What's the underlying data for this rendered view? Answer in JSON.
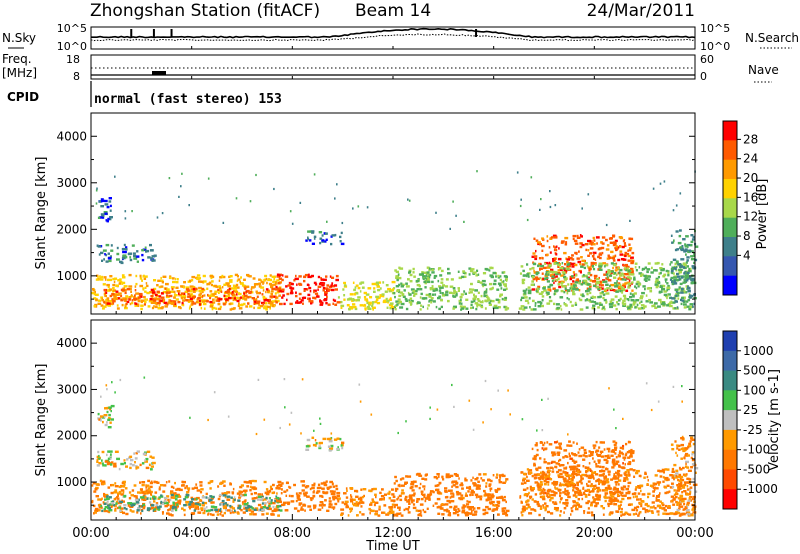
{
  "header": {
    "station": "Zhongshan Station (fitACF)",
    "beam": "Beam 14",
    "date": "24/Mar/2011"
  },
  "top_panels": {
    "nsky_label": "N.Sky",
    "nsky_ticks": [
      "10^5",
      "10^0"
    ],
    "nsearch_label": "N.Search",
    "nsearch_ticks": [
      "10^5",
      "10^0"
    ],
    "freq_label": "Freq.",
    "freq_unit": "[MHz]",
    "freq_ticks": [
      "18",
      "8"
    ],
    "nave_label": "Nave",
    "nave_ticks": [
      "60",
      "0"
    ],
    "cpid_label": "CPID",
    "cpid_value": "normal (fast stereo) 153"
  },
  "time_axis": {
    "ticks": [
      "00:00",
      "04:00",
      "08:00",
      "12:00",
      "16:00",
      "20:00",
      "00:00"
    ],
    "label": "Time UT"
  },
  "power_colorbar": {
    "label": "Power [dB]",
    "ticks": [
      "28",
      "24",
      "20",
      "16",
      "12",
      "8",
      "4"
    ],
    "colors": [
      "#ff0000",
      "#ff5a00",
      "#ff9a00",
      "#ffd200",
      "#a8d84a",
      "#4fae5a",
      "#3e7f8a",
      "#3557b0",
      "#0000ff"
    ]
  },
  "velocity_colorbar": {
    "label": "Velocity [m s-1]",
    "ticks": [
      "1000",
      "500",
      "100",
      "25",
      "-25",
      "-100",
      "-500",
      "-1000"
    ],
    "colors": [
      "#1f3fb0",
      "#3d6aa8",
      "#3a8a82",
      "#44c14a",
      "#bfbfbf",
      "#ff9a00",
      "#ff7800",
      "#ff4a00",
      "#ff0000"
    ]
  },
  "chart_data": [
    {
      "type": "heatmap",
      "title": "Power",
      "ylabel": "Slant Range [km]",
      "xlabel": "Time UT",
      "x_range_hours": [
        0,
        24
      ],
      "y_range_km": [
        180,
        4500
      ],
      "y_ticks": [
        1000,
        2000,
        3000,
        4000
      ],
      "regions": [
        {
          "t": [
            0.0,
            7.5
          ],
          "r": [
            300,
            1050
          ],
          "power_db": 20
        },
        {
          "t": [
            0.3,
            7.5
          ],
          "r": [
            400,
            750
          ],
          "power_db": 26
        },
        {
          "t": [
            7.3,
            9.8
          ],
          "r": [
            400,
            1050
          ],
          "power_db": 28
        },
        {
          "t": [
            9.8,
            12.0
          ],
          "r": [
            300,
            900
          ],
          "power_db": 16
        },
        {
          "t": [
            0.2,
            2.5
          ],
          "r": [
            1300,
            1700
          ],
          "power_db": 6
        },
        {
          "t": [
            0.2,
            0.8
          ],
          "r": [
            2200,
            2700
          ],
          "power_db": 5
        },
        {
          "t": [
            8.5,
            10.0
          ],
          "r": [
            1700,
            2000
          ],
          "power_db": 5
        },
        {
          "t": [
            12.0,
            16.5
          ],
          "r": [
            300,
            1200
          ],
          "power_db": 12
        },
        {
          "t": [
            17.5,
            21.5
          ],
          "r": [
            700,
            1900
          ],
          "power_db": 26
        },
        {
          "t": [
            17.0,
            23.8
          ],
          "r": [
            300,
            1300
          ],
          "power_db": 12
        },
        {
          "t": [
            23.0,
            24.0
          ],
          "r": [
            300,
            2000
          ],
          "power_db": 8
        }
      ]
    },
    {
      "type": "heatmap",
      "title": "Velocity",
      "ylabel": "Slant Range [km]",
      "xlabel": "Time UT",
      "x_range_hours": [
        0,
        24
      ],
      "y_range_km": [
        180,
        4500
      ],
      "y_ticks": [
        1000,
        2000,
        3000,
        4000
      ],
      "regions": [
        {
          "t": [
            0.0,
            7.5
          ],
          "r": [
            300,
            1050
          ],
          "velocity_ms": -150
        },
        {
          "t": [
            0.3,
            7.5
          ],
          "r": [
            400,
            750
          ],
          "velocity_ms": 80
        },
        {
          "t": [
            7.3,
            9.8
          ],
          "r": [
            400,
            1050
          ],
          "velocity_ms": -300
        },
        {
          "t": [
            9.8,
            12.0
          ],
          "r": [
            300,
            900
          ],
          "velocity_ms": -120
        },
        {
          "t": [
            0.2,
            2.5
          ],
          "r": [
            1300,
            1700
          ],
          "velocity_ms": -20
        },
        {
          "t": [
            0.2,
            0.8
          ],
          "r": [
            2200,
            2700
          ],
          "velocity_ms": 0
        },
        {
          "t": [
            8.5,
            10.0
          ],
          "r": [
            1700,
            2000
          ],
          "velocity_ms": 0
        },
        {
          "t": [
            12.0,
            16.5
          ],
          "r": [
            300,
            1200
          ],
          "velocity_ms": -200
        },
        {
          "t": [
            17.5,
            21.5
          ],
          "r": [
            700,
            1900
          ],
          "velocity_ms": -400
        },
        {
          "t": [
            17.0,
            23.8
          ],
          "r": [
            300,
            1300
          ],
          "velocity_ms": -150
        },
        {
          "t": [
            23.0,
            24.0
          ],
          "r": [
            300,
            2000
          ],
          "velocity_ms": -100
        }
      ]
    }
  ]
}
